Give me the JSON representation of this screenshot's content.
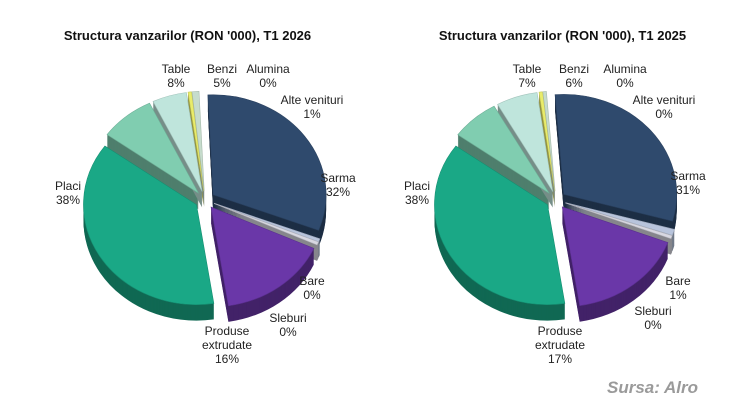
{
  "colors": {
    "Placi": "#1aa886",
    "Table": "#80cdb0",
    "Benzi": "#bfe5dc",
    "Alumina": "#e9ec6a",
    "Alte venituri": "#c6dccc",
    "Sarma": "#2f4a6d",
    "Bare": "#b8c4dc",
    "Sleburi": "#d8d8e2",
    "Produse extrudate": "#6a37a8"
  },
  "source": "Sursa: Alro",
  "chart_data": [
    {
      "type": "pie",
      "title": "Structura vanzarilor (RON '000), T1 2026",
      "slices": [
        {
          "name": "Alumina",
          "label_lines": [
            "Alumina"
          ],
          "value": 0,
          "value_label": "0%"
        },
        {
          "name": "Alte venituri",
          "label_lines": [
            "Alte venituri"
          ],
          "value": 1,
          "value_label": "1%"
        },
        {
          "name": "Sarma",
          "label_lines": [
            "Sarma"
          ],
          "value": 32,
          "value_label": "32%"
        },
        {
          "name": "Bare",
          "label_lines": [
            "Bare"
          ],
          "value": 0,
          "value_label": "0%"
        },
        {
          "name": "Sleburi",
          "label_lines": [
            "Sleburi"
          ],
          "value": 0,
          "value_label": "0%"
        },
        {
          "name": "Produse extrudate",
          "label_lines": [
            "Produse",
            "extrudate"
          ],
          "value": 16,
          "value_label": "16%"
        },
        {
          "name": "Placi",
          "label_lines": [
            "Placi"
          ],
          "value": 38,
          "value_label": "38%"
        },
        {
          "name": "Table",
          "label_lines": [
            "Table"
          ],
          "value": 8,
          "value_label": "8%"
        },
        {
          "name": "Benzi",
          "label_lines": [
            "Benzi"
          ],
          "value": 5,
          "value_label": "5%"
        }
      ]
    },
    {
      "type": "pie",
      "title": "Structura vanzarilor (RON '000), T1 2025",
      "slices": [
        {
          "name": "Alumina",
          "label_lines": [
            "Alumina"
          ],
          "value": 0,
          "value_label": "0%"
        },
        {
          "name": "Alte venituri",
          "label_lines": [
            "Alte venituri"
          ],
          "value": 0,
          "value_label": "0%"
        },
        {
          "name": "Sarma",
          "label_lines": [
            "Sarma"
          ],
          "value": 31,
          "value_label": "31%"
        },
        {
          "name": "Bare",
          "label_lines": [
            "Bare"
          ],
          "value": 1,
          "value_label": "1%"
        },
        {
          "name": "Sleburi",
          "label_lines": [
            "Sleburi"
          ],
          "value": 0,
          "value_label": "0%"
        },
        {
          "name": "Produse extrudate",
          "label_lines": [
            "Produse",
            "extrudate"
          ],
          "value": 17,
          "value_label": "17%"
        },
        {
          "name": "Placi",
          "label_lines": [
            "Placi"
          ],
          "value": 38,
          "value_label": "38%"
        },
        {
          "name": "Table",
          "label_lines": [
            "Table"
          ],
          "value": 7,
          "value_label": "7%"
        },
        {
          "name": "Benzi",
          "label_lines": [
            "Benzi"
          ],
          "value": 6,
          "value_label": "6%"
        }
      ]
    }
  ]
}
